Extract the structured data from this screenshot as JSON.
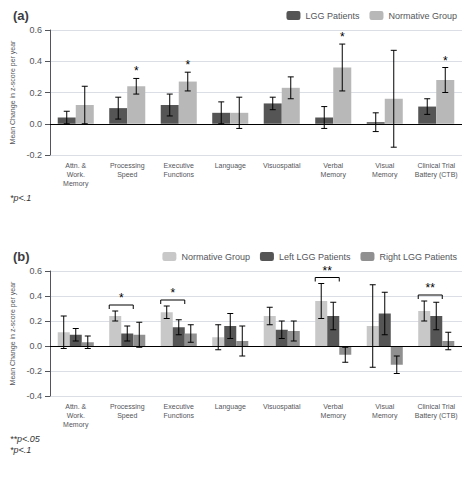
{
  "chart_data": [
    {
      "type": "bar",
      "title": "(a)",
      "categories": [
        "Attn. &\nWork.\nMemory",
        "Processing\nSpeed",
        "Executive\nFunctions",
        "Language",
        "Visuospatial",
        "Verbal\nMemory",
        "Visual\nMemory",
        "Clinical Trial\nBattery (CTB)"
      ],
      "series": [
        {
          "name": "LGG Patients",
          "color": "#555555",
          "values": [
            0.04,
            0.1,
            0.12,
            0.07,
            0.13,
            0.04,
            0.01,
            0.11
          ],
          "errors": [
            0.04,
            0.07,
            0.07,
            0.07,
            0.04,
            0.07,
            0.06,
            0.05
          ]
        },
        {
          "name": "Normative Group",
          "color": "#b8b8b8",
          "values": [
            0.12,
            0.24,
            0.27,
            0.07,
            0.23,
            0.36,
            0.16,
            0.28
          ],
          "errors": [
            0.12,
            0.05,
            0.06,
            0.1,
            0.07,
            0.15,
            0.31,
            0.08
          ]
        }
      ],
      "annotations": [
        {
          "text": "*",
          "category": "Processing\nSpeed",
          "series": [
            "Normative Group"
          ]
        },
        {
          "text": "*",
          "category": "Executive\nFunctions",
          "series": [
            "Normative Group"
          ]
        },
        {
          "text": "*",
          "category": "Verbal\nMemory",
          "series": [
            "Normative Group"
          ]
        },
        {
          "text": "*",
          "category": "Clinical Trial\nBattery (CTB)",
          "series": [
            "Normative Group"
          ]
        },
        {
          "text": "*p<.1"
        }
      ],
      "ylabel": "Mean Change in z-score per year",
      "ylim": [
        -0.2,
        0.6
      ],
      "yticks": [
        -0.2,
        {
          "value": 0,
          "label": "0.0"
        },
        0.2,
        0.4,
        0.6
      ],
      "grid": true,
      "legend": "top"
    },
    {
      "type": "bar",
      "title": "(b)",
      "categories": [
        "Attn. &\nWork.\nMemory",
        "Processing\nSpeed",
        "Executive\nFunctions",
        "Language",
        "Visuospatial",
        "Verbal\nMemory",
        "Visual\nMemory",
        "Clinical Trial\nBattery (CTB)"
      ],
      "series": [
        {
          "name": "Normative Group",
          "color": "#c8c8c8",
          "values": [
            0.11,
            0.24,
            0.27,
            0.07,
            0.24,
            0.36,
            0.16,
            0.28
          ],
          "errors": [
            0.13,
            0.04,
            0.05,
            0.1,
            0.07,
            0.14,
            0.33,
            0.08
          ]
        },
        {
          "name": "Left LGG Patients",
          "color": "#555555",
          "values": [
            0.09,
            0.1,
            0.15,
            0.16,
            0.13,
            0.24,
            0.26,
            0.24
          ],
          "errors": [
            0.05,
            0.06,
            0.06,
            0.1,
            0.07,
            0.11,
            0.17,
            0.11
          ]
        },
        {
          "name": "Right LGG Patients",
          "color": "#909090",
          "values": [
            0.03,
            0.09,
            0.1,
            0.04,
            0.12,
            -0.07,
            -0.15,
            0.04
          ],
          "errors": [
            0.05,
            0.1,
            0.07,
            0.12,
            0.08,
            0.06,
            0.07,
            0.07
          ]
        }
      ],
      "annotations": [
        {
          "text": "*",
          "category": "Processing\nSpeed",
          "series": [
            "Normative Group",
            "Left LGG Patients"
          ]
        },
        {
          "text": "*",
          "category": "Executive\nFunctions",
          "series": [
            "Normative Group",
            "Left LGG Patients"
          ]
        },
        {
          "text": "**",
          "category": "Verbal\nMemory",
          "series": [
            "Normative Group",
            "Left LGG Patients"
          ]
        },
        {
          "text": "**",
          "category": "Clinical Trial\nBattery (CTB)",
          "series": [
            "Normative Group",
            "Left LGG Patients"
          ]
        },
        {
          "text": "**p<.05"
        },
        {
          "text": "*p<.1"
        }
      ],
      "ylabel": "Mean Change in z-score per year",
      "ylim": [
        -0.4,
        0.6
      ],
      "yticks": [
        -0.4,
        -0.2,
        {
          "value": 0,
          "label": "0.0"
        },
        0.2,
        0.4,
        0.6
      ],
      "grid": true,
      "legend": "top"
    }
  ]
}
